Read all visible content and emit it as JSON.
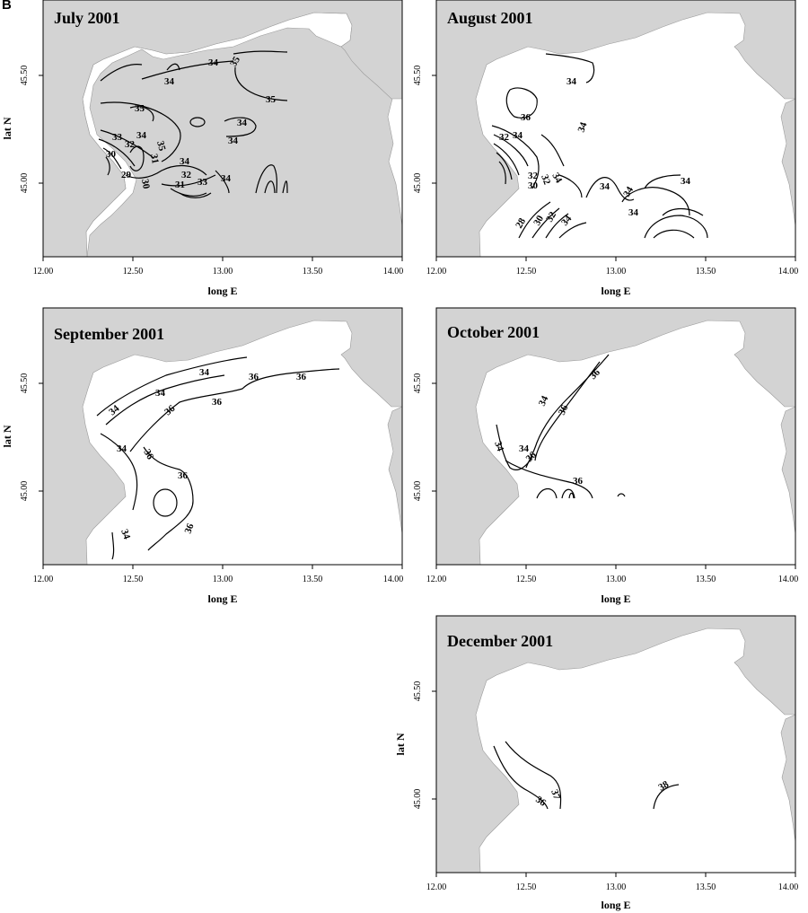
{
  "figure_label": "B",
  "chart_data": [
    {
      "type": "contour-map",
      "title": "July 2001",
      "xlabel": "long E",
      "ylabel": "lat N",
      "xlim": [
        12.0,
        14.0
      ],
      "ylim": [
        44.66,
        45.77
      ],
      "x_ticks": [
        "12.00",
        "12.50",
        "13.00",
        "13.50",
        "14.00"
      ],
      "y_ticks": [
        "45.00",
        "45.50"
      ],
      "contour_labels": [
        "34",
        "35",
        "34",
        "35",
        "35",
        "34",
        "34",
        "33",
        "32",
        "34",
        "35",
        "30",
        "31",
        "32",
        "33",
        "34",
        "34",
        "30",
        "31",
        "29"
      ]
    },
    {
      "type": "contour-map",
      "title": "August 2001",
      "xlabel": "long E",
      "ylabel": "lat N",
      "xlim": [
        12.0,
        14.0
      ],
      "ylim": [
        44.66,
        45.77
      ],
      "x_ticks": [
        "12.00",
        "12.50",
        "13.00",
        "13.50",
        "14.00"
      ],
      "y_ticks": [
        "45.00",
        "45.50"
      ],
      "contour_labels": [
        "34",
        "36",
        "34",
        "32",
        "34",
        "32",
        "30",
        "32",
        "34",
        "34",
        "34",
        "34",
        "34",
        "28",
        "30",
        "32",
        "34"
      ]
    },
    {
      "type": "contour-map",
      "title": "September 2001",
      "xlabel": "long E",
      "ylabel": "lat N",
      "xlim": [
        12.0,
        14.0
      ],
      "ylim": [
        44.66,
        45.77
      ],
      "x_ticks": [
        "12.00",
        "12.50",
        "13.00",
        "13.50",
        "14.00"
      ],
      "y_ticks": [
        "45.00",
        "45.50"
      ],
      "contour_labels": [
        "34",
        "36",
        "36",
        "34",
        "34",
        "36",
        "36",
        "34",
        "36",
        "36",
        "36",
        "34"
      ]
    },
    {
      "type": "contour-map",
      "title": "October 2001",
      "xlabel": "long E",
      "ylabel": "lat N",
      "xlim": [
        12.0,
        14.0
      ],
      "ylim": [
        44.66,
        45.77
      ],
      "x_ticks": [
        "12.00",
        "12.50",
        "13.00",
        "13.50",
        "14.00"
      ],
      "y_ticks": [
        "45.00",
        "45.50"
      ],
      "contour_labels": [
        "36",
        "34",
        "36",
        "34",
        "34",
        "36",
        "36"
      ]
    },
    {
      "type": "contour-map",
      "title": "December 2001",
      "xlabel": "long E",
      "ylabel": "lat N",
      "xlim": [
        12.0,
        14.0
      ],
      "ylim": [
        44.66,
        45.77
      ],
      "x_ticks": [
        "12.00",
        "12.50",
        "13.00",
        "13.50",
        "14.00"
      ],
      "y_ticks": [
        "45.00",
        "45.50"
      ],
      "contour_labels": [
        "36",
        "37",
        "38"
      ]
    }
  ]
}
